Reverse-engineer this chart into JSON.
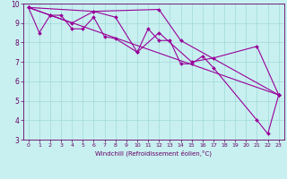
{
  "xlabel": "Windchill (Refroidissement éolien,°C)",
  "background_color": "#c8f0f0",
  "line_color": "#990099",
  "xlim": [
    -0.5,
    23.5
  ],
  "ylim": [
    3,
    10
  ],
  "xticks": [
    0,
    1,
    2,
    3,
    4,
    5,
    6,
    7,
    8,
    9,
    10,
    11,
    12,
    13,
    14,
    15,
    16,
    17,
    18,
    19,
    20,
    21,
    22,
    23
  ],
  "yticks": [
    3,
    4,
    5,
    6,
    7,
    8,
    9,
    10
  ],
  "series": [
    [
      [
        0,
        9.8
      ],
      [
        1,
        8.5
      ],
      [
        2,
        9.4
      ],
      [
        3,
        9.4
      ],
      [
        4,
        8.7
      ],
      [
        5,
        8.7
      ],
      [
        6,
        9.3
      ],
      [
        7,
        8.3
      ],
      [
        8,
        8.2
      ],
      [
        10,
        7.5
      ],
      [
        11,
        8.7
      ],
      [
        12,
        8.1
      ],
      [
        13,
        8.1
      ],
      [
        14,
        6.9
      ],
      [
        15,
        6.9
      ],
      [
        16,
        7.3
      ],
      [
        17,
        6.7
      ],
      [
        21,
        4.0
      ],
      [
        22,
        3.3
      ],
      [
        23,
        5.3
      ]
    ],
    [
      [
        0,
        9.8
      ],
      [
        2,
        9.4
      ],
      [
        4,
        9.0
      ],
      [
        6,
        9.6
      ],
      [
        8,
        9.3
      ],
      [
        10,
        7.5
      ],
      [
        12,
        8.5
      ],
      [
        15,
        7.0
      ],
      [
        17,
        7.2
      ],
      [
        21,
        7.8
      ],
      [
        23,
        5.3
      ]
    ],
    [
      [
        0,
        9.8
      ],
      [
        6,
        9.6
      ],
      [
        12,
        9.7
      ],
      [
        14,
        8.1
      ],
      [
        23,
        5.3
      ]
    ],
    [
      [
        0,
        9.8
      ],
      [
        23,
        5.3
      ]
    ]
  ]
}
